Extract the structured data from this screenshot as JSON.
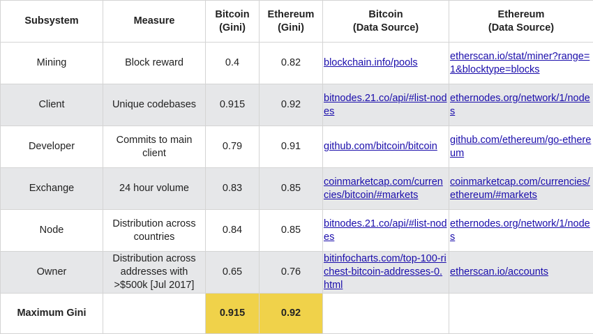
{
  "headers": {
    "subsystem": "Subsystem",
    "measure": "Measure",
    "bitcoin_gini": [
      "Bitcoin",
      "(Gini)"
    ],
    "ethereum_gini": [
      "Ethereum",
      "(Gini)"
    ],
    "bitcoin_source": [
      "Bitcoin",
      "(Data Source)"
    ],
    "ethereum_source": [
      "Ethereum",
      "(Data Source)"
    ]
  },
  "rows": [
    {
      "subsystem": "Mining",
      "measure": "Block reward",
      "bitcoin": "0.4",
      "ethereum": "0.82",
      "bitcoin_source": "blockchain.info/pools",
      "ethereum_source": "etherscan.io/stat/miner?range=1&blocktype=blocks"
    },
    {
      "subsystem": "Client",
      "measure": "Unique codebases",
      "bitcoin": "0.915",
      "ethereum": "0.92",
      "bitcoin_source": "bitnodes.21.co/api/#list-nodes",
      "ethereum_source": "ethernodes.org/network/1/nodes"
    },
    {
      "subsystem": "Developer",
      "measure": "Commits to main client",
      "bitcoin": "0.79",
      "ethereum": "0.91",
      "bitcoin_source": "github.com/bitcoin/bitcoin",
      "ethereum_source": "github.com/ethereum/go-ethereum"
    },
    {
      "subsystem": "Exchange",
      "measure": "24 hour volume",
      "bitcoin": "0.83",
      "ethereum": "0.85",
      "bitcoin_source": "coinmarketcap.com/currencies/bitcoin/#markets",
      "ethereum_source": "coinmarketcap.com/currencies/ethereum/#markets"
    },
    {
      "subsystem": "Node",
      "measure": "Distribution across countries",
      "bitcoin": "0.84",
      "ethereum": "0.85",
      "bitcoin_source": "bitnodes.21.co/api/#list-nodes",
      "ethereum_source": "ethernodes.org/network/1/nodes"
    },
    {
      "subsystem": "Owner",
      "measure": "Distribution across addresses with >$500k [Jul 2017]",
      "bitcoin": "0.65",
      "ethereum": "0.76",
      "bitcoin_source": "bitinfocharts.com/top-100-richest-bitcoin-addresses-0.html",
      "ethereum_source": "etherscan.io/accounts"
    }
  ],
  "footer": {
    "label": "Maximum Gini",
    "bitcoin": "0.915",
    "ethereum": "0.92"
  },
  "colors": {
    "alt_row": "#e6e7e9",
    "highlight": "#f0d24a",
    "link": "#1a0dab",
    "border": "#d4d4d4"
  }
}
